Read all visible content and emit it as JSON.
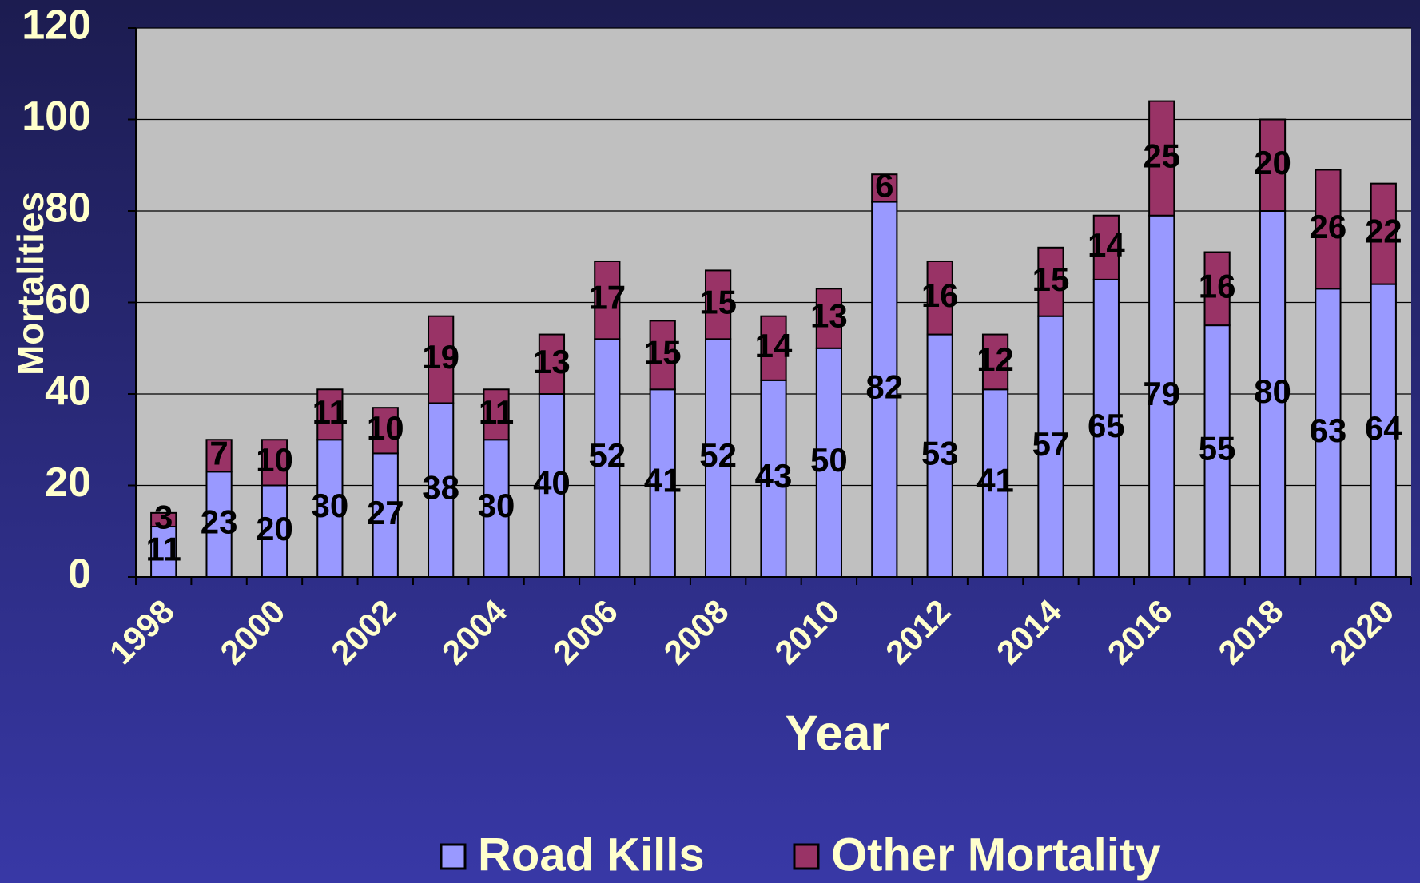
{
  "chart_data": {
    "type": "stacked_bar",
    "x_label": "Year",
    "y_label": "Mortalities",
    "categories": [
      "1998",
      null,
      "2000",
      null,
      "2002",
      null,
      "2004",
      null,
      "2006",
      null,
      "2008",
      null,
      "2010",
      null,
      "2012",
      null,
      "2014",
      null,
      "2016",
      null,
      "2018",
      null,
      "2020"
    ],
    "series": [
      {
        "name": "Road Kills",
        "color": "#9999ff",
        "values": [
          11,
          23,
          20,
          30,
          27,
          38,
          30,
          40,
          52,
          41,
          52,
          43,
          50,
          82,
          53,
          41,
          57,
          65,
          79,
          55,
          80,
          63,
          64
        ]
      },
      {
        "name": "Other Mortality",
        "color": "#993366",
        "values": [
          3,
          7,
          10,
          11,
          10,
          19,
          11,
          13,
          17,
          15,
          15,
          14,
          13,
          6,
          16,
          12,
          15,
          14,
          25,
          16,
          20,
          26,
          22
        ]
      }
    ],
    "ylim": [
      0,
      120
    ],
    "yticks": [
      0,
      20,
      40,
      60,
      80,
      100,
      120
    ],
    "grid": true,
    "legend": "bottom"
  }
}
